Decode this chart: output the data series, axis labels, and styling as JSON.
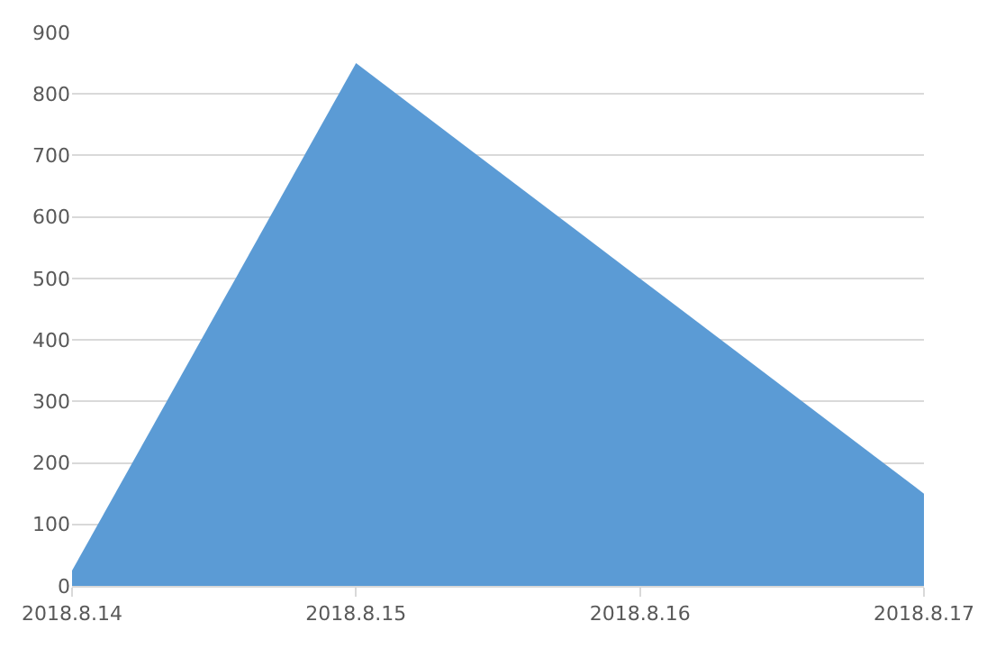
{
  "chart_data": {
    "type": "area",
    "categories": [
      "2018.8.14",
      "2018.8.15",
      "2018.8.16",
      "2018.8.17"
    ],
    "values": [
      25,
      850,
      500,
      150
    ],
    "color": "#5b9bd5",
    "ylim": [
      0,
      900
    ],
    "yticks": [
      0,
      100,
      200,
      300,
      400,
      500,
      600,
      700,
      800,
      900
    ],
    "grid": "y",
    "legend": false
  }
}
